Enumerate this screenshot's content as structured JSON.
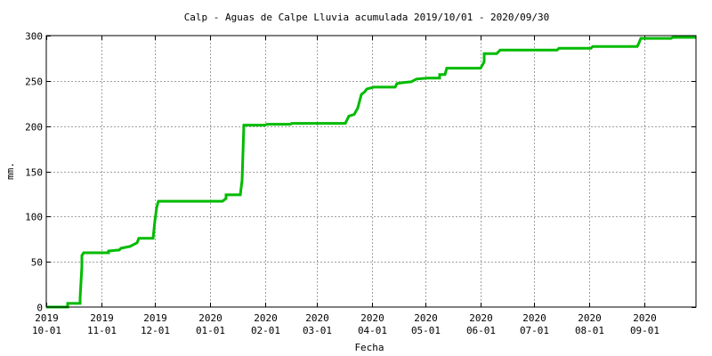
{
  "chart_data": {
    "type": "line",
    "title": "Calp - Aguas de Calpe Lluvia acumulada 2019/10/01 - 2020/09/30",
    "xlabel": "Fecha",
    "ylabel": "mm.",
    "xlim": [
      "2019-10-01",
      "2020-09-30"
    ],
    "ylim": [
      0,
      300
    ],
    "y_ticks": [
      0,
      50,
      100,
      150,
      200,
      250,
      300
    ],
    "x_ticks": [
      {
        "date": "2019-10-01",
        "year": "2019",
        "day": "10-01"
      },
      {
        "date": "2019-11-01",
        "year": "2019",
        "day": "11-01"
      },
      {
        "date": "2019-12-01",
        "year": "2019",
        "day": "12-01"
      },
      {
        "date": "2020-01-01",
        "year": "2020",
        "day": "01-01"
      },
      {
        "date": "2020-02-01",
        "year": "2020",
        "day": "02-01"
      },
      {
        "date": "2020-03-01",
        "year": "2020",
        "day": "03-01"
      },
      {
        "date": "2020-04-01",
        "year": "2020",
        "day": "04-01"
      },
      {
        "date": "2020-05-01",
        "year": "2020",
        "day": "05-01"
      },
      {
        "date": "2020-06-01",
        "year": "2020",
        "day": "06-01"
      },
      {
        "date": "2020-07-01",
        "year": "2020",
        "day": "07-01"
      },
      {
        "date": "2020-08-01",
        "year": "2020",
        "day": "08-01"
      },
      {
        "date": "2020-09-01",
        "year": "2020",
        "day": "09-01"
      }
    ],
    "grid": true,
    "series": [
      {
        "color": "#00bb00",
        "points": [
          [
            "2019-10-01",
            0
          ],
          [
            "2019-10-13",
            0
          ],
          [
            "2019-10-13",
            4
          ],
          [
            "2019-10-20",
            4
          ],
          [
            "2019-10-20",
            10
          ],
          [
            "2019-10-21",
            45
          ],
          [
            "2019-10-21",
            57
          ],
          [
            "2019-10-22",
            60
          ],
          [
            "2019-11-05",
            60
          ],
          [
            "2019-11-05",
            62
          ],
          [
            "2019-11-11",
            63
          ],
          [
            "2019-11-12",
            65
          ],
          [
            "2019-11-17",
            67
          ],
          [
            "2019-11-20",
            70
          ],
          [
            "2019-11-21",
            71
          ],
          [
            "2019-11-22",
            76
          ],
          [
            "2019-11-30",
            76
          ],
          [
            "2019-12-01",
            95
          ],
          [
            "2019-12-02",
            110
          ],
          [
            "2019-12-03",
            117
          ],
          [
            "2019-12-21",
            117
          ],
          [
            "2020-01-08",
            117
          ],
          [
            "2020-01-10",
            120
          ],
          [
            "2020-01-10",
            124
          ],
          [
            "2020-01-18",
            124
          ],
          [
            "2020-01-19",
            140
          ],
          [
            "2020-01-20",
            201
          ],
          [
            "2020-02-01",
            201
          ],
          [
            "2020-02-02",
            202
          ],
          [
            "2020-02-15",
            202
          ],
          [
            "2020-02-16",
            203
          ],
          [
            "2020-03-17",
            203
          ],
          [
            "2020-03-19",
            211
          ],
          [
            "2020-03-22",
            213
          ],
          [
            "2020-03-24",
            220
          ],
          [
            "2020-03-26",
            235
          ],
          [
            "2020-03-28",
            238
          ],
          [
            "2020-03-29",
            241
          ],
          [
            "2020-04-02",
            243
          ],
          [
            "2020-04-14",
            243
          ],
          [
            "2020-04-15",
            247
          ],
          [
            "2020-04-18",
            248
          ],
          [
            "2020-04-23",
            249
          ],
          [
            "2020-04-26",
            252
          ],
          [
            "2020-05-02",
            253
          ],
          [
            "2020-05-09",
            253
          ],
          [
            "2020-05-09",
            257
          ],
          [
            "2020-05-12",
            257
          ],
          [
            "2020-05-13",
            264
          ],
          [
            "2020-05-31",
            264
          ],
          [
            "2020-06-01",
            264
          ],
          [
            "2020-06-03",
            271
          ],
          [
            "2020-06-03",
            280
          ],
          [
            "2020-06-10",
            280
          ],
          [
            "2020-06-12",
            284
          ],
          [
            "2020-07-14",
            284
          ],
          [
            "2020-07-15",
            286
          ],
          [
            "2020-08-02",
            286
          ],
          [
            "2020-08-03",
            288
          ],
          [
            "2020-08-28",
            288
          ],
          [
            "2020-08-29",
            292
          ],
          [
            "2020-08-30",
            297
          ],
          [
            "2020-09-16",
            297
          ],
          [
            "2020-09-17",
            298
          ],
          [
            "2020-09-30",
            298
          ]
        ]
      }
    ]
  }
}
